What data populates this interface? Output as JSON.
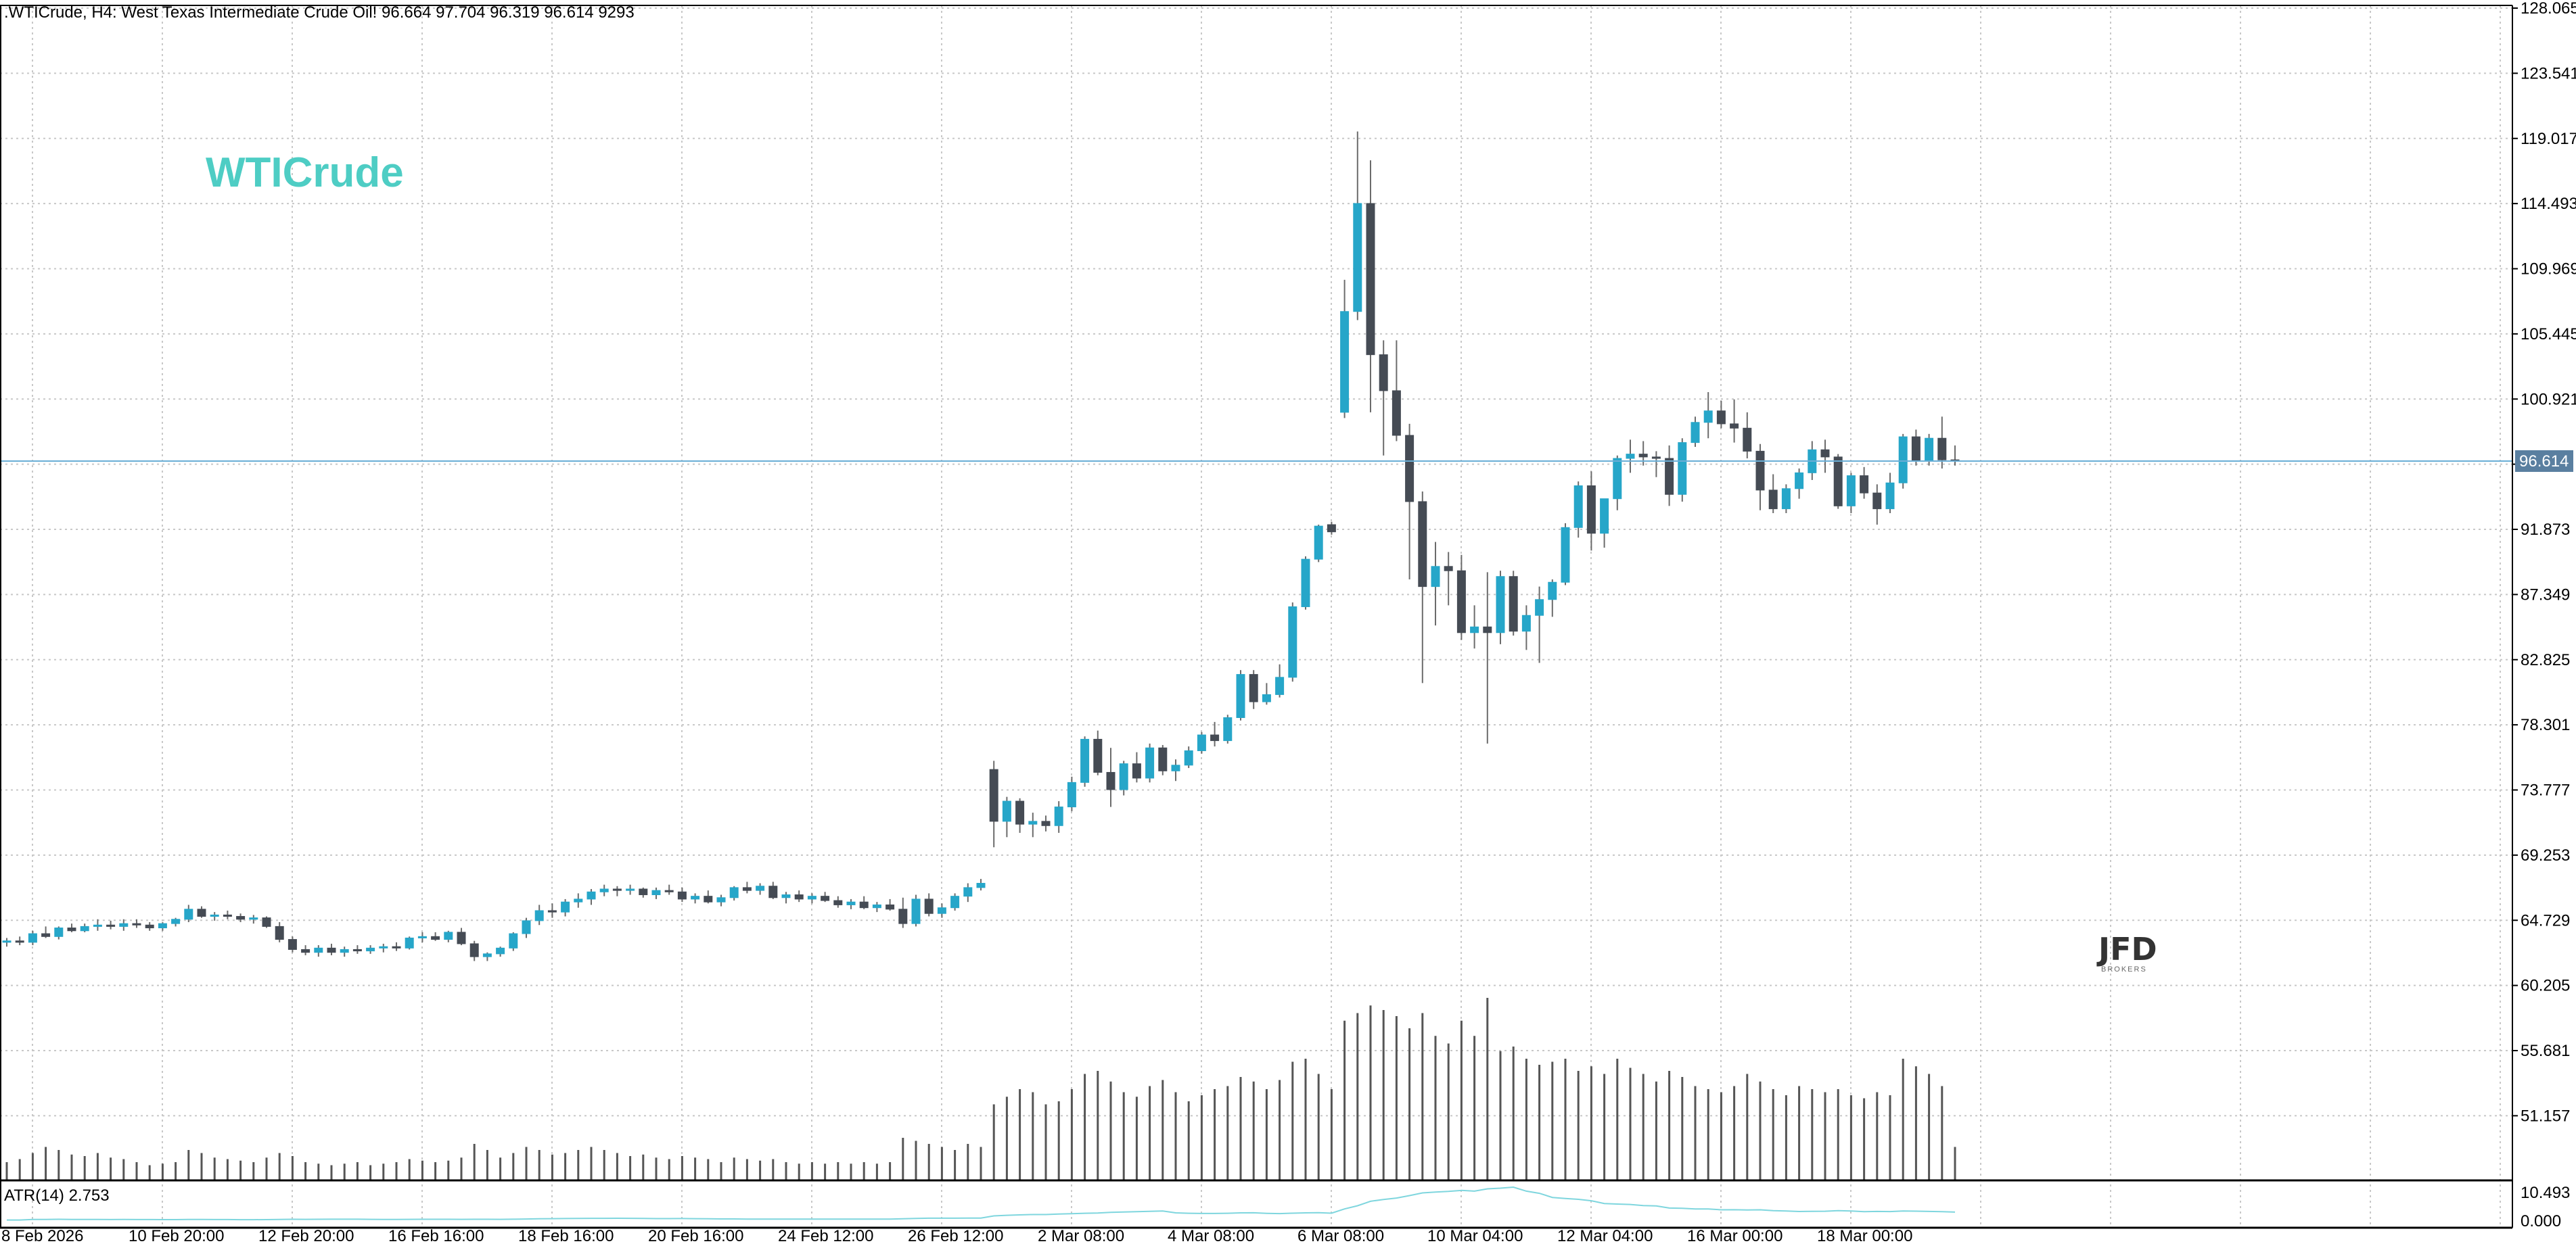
{
  "header": {
    "symbol": ".WTICrude",
    "timeframe": "H4",
    "description": "West Texas Intermediate Crude Oil!",
    "ohlc": "96.664 97.704 96.319 96.614",
    "tick_volume": "9293"
  },
  "watermark": {
    "symbol_label": "WTICrude",
    "logo_text": "JFD",
    "logo_subtext": "BROKERS"
  },
  "colors": {
    "bull": "#26a6c9",
    "bear": "#454b54",
    "grid": "#c8c8c8",
    "frame": "#000000",
    "price_line": "#6aaed6",
    "price_badge": "#5a7fa0",
    "symbol_label": "#4ecdc4",
    "volume": "#555555",
    "atr_line": "#7fd6de"
  },
  "indicator": {
    "label": "ATR(14) 2.753"
  },
  "chart_data": {
    "type": "candlestick",
    "title": ".WTICrude, H4: West Texas Intermediate Crude Oil!",
    "ylim": [
      55.681,
      128.065
    ],
    "y_ticks": [
      "128.065",
      "123.541",
      "119.017",
      "114.493",
      "109.969",
      "105.445",
      "100.921",
      "96.397",
      "91.873",
      "87.349",
      "82.825",
      "78.301",
      "73.777",
      "69.253",
      "64.729",
      "60.205",
      "55.681",
      "51.157"
    ],
    "current_price": "96.614",
    "x_tick_labels": [
      "8 Feb 2026",
      "10 Feb 20:00",
      "12 Feb 20:00",
      "16 Feb 16:00",
      "18 Feb 16:00",
      "20 Feb 16:00",
      "24 Feb 12:00",
      "26 Feb 12:00",
      "2 Mar 08:00",
      "4 Mar 08:00",
      "6 Mar 08:00",
      "10 Mar 04:00",
      "12 Mar 04:00",
      "16 Mar 00:00",
      "18 Mar 00:00"
    ],
    "candles": [
      [
        63.2,
        63.5,
        62.9,
        63.3,
        12
      ],
      [
        63.3,
        63.6,
        63.0,
        63.2,
        14
      ],
      [
        63.2,
        64.0,
        63.0,
        63.8,
        18
      ],
      [
        63.8,
        64.3,
        63.5,
        63.6,
        22
      ],
      [
        63.6,
        64.3,
        63.4,
        64.2,
        20
      ],
      [
        64.2,
        64.5,
        63.9,
        64.0,
        17
      ],
      [
        64.0,
        64.5,
        63.9,
        64.3,
        16
      ],
      [
        64.3,
        64.8,
        64.0,
        64.4,
        18
      ],
      [
        64.4,
        64.7,
        64.1,
        64.3,
        15
      ],
      [
        64.3,
        64.8,
        64.0,
        64.5,
        14
      ],
      [
        64.5,
        64.8,
        64.2,
        64.4,
        12
      ],
      [
        64.4,
        64.6,
        64.0,
        64.2,
        10
      ],
      [
        64.2,
        64.6,
        64.0,
        64.5,
        11
      ],
      [
        64.5,
        64.9,
        64.3,
        64.8,
        12
      ],
      [
        64.8,
        65.8,
        64.6,
        65.5,
        20
      ],
      [
        65.5,
        65.7,
        64.9,
        65.0,
        18
      ],
      [
        65.0,
        65.3,
        64.7,
        65.1,
        15
      ],
      [
        65.1,
        65.4,
        64.8,
        65.0,
        14
      ],
      [
        65.0,
        65.2,
        64.6,
        64.8,
        13
      ],
      [
        64.8,
        65.1,
        64.5,
        64.9,
        12
      ],
      [
        64.9,
        65.0,
        64.2,
        64.3,
        15
      ],
      [
        64.3,
        64.6,
        63.2,
        63.4,
        18
      ],
      [
        63.4,
        63.6,
        62.5,
        62.7,
        16
      ],
      [
        62.7,
        63.0,
        62.3,
        62.5,
        12
      ],
      [
        62.5,
        63.0,
        62.2,
        62.8,
        11
      ],
      [
        62.8,
        63.1,
        62.3,
        62.5,
        10
      ],
      [
        62.5,
        62.9,
        62.2,
        62.7,
        11
      ],
      [
        62.7,
        63.0,
        62.4,
        62.6,
        12
      ],
      [
        62.6,
        63.0,
        62.4,
        62.8,
        10
      ],
      [
        62.8,
        63.1,
        62.5,
        62.9,
        11
      ],
      [
        62.9,
        63.2,
        62.6,
        62.8,
        12
      ],
      [
        62.8,
        63.6,
        62.7,
        63.5,
        14
      ],
      [
        63.5,
        63.9,
        63.2,
        63.6,
        13
      ],
      [
        63.6,
        63.9,
        63.3,
        63.4,
        12
      ],
      [
        63.4,
        64.0,
        63.2,
        63.9,
        13
      ],
      [
        63.9,
        64.2,
        63.0,
        63.1,
        15
      ],
      [
        63.1,
        63.3,
        61.9,
        62.2,
        24
      ],
      [
        62.2,
        62.5,
        61.9,
        62.4,
        20
      ],
      [
        62.4,
        62.9,
        62.2,
        62.8,
        15
      ],
      [
        62.8,
        63.9,
        62.6,
        63.8,
        18
      ],
      [
        63.8,
        64.9,
        63.5,
        64.7,
        22
      ],
      [
        64.7,
        65.8,
        64.4,
        65.4,
        20
      ],
      [
        65.4,
        65.9,
        64.9,
        65.3,
        17
      ],
      [
        65.3,
        66.2,
        65.0,
        66.0,
        18
      ],
      [
        66.0,
        66.6,
        65.6,
        66.2,
        20
      ],
      [
        66.2,
        66.9,
        65.8,
        66.7,
        22
      ],
      [
        66.7,
        67.2,
        66.4,
        66.9,
        20
      ],
      [
        66.9,
        67.1,
        66.4,
        66.8,
        18
      ],
      [
        66.8,
        67.2,
        66.5,
        66.9,
        16
      ],
      [
        66.9,
        67.0,
        66.3,
        66.5,
        17
      ],
      [
        66.5,
        67.0,
        66.2,
        66.8,
        15
      ],
      [
        66.8,
        67.2,
        66.5,
        66.7,
        14
      ],
      [
        66.7,
        67.0,
        66.0,
        66.2,
        16
      ],
      [
        66.2,
        66.6,
        65.9,
        66.4,
        15
      ],
      [
        66.4,
        66.8,
        65.9,
        66.0,
        14
      ],
      [
        66.0,
        66.5,
        65.7,
        66.3,
        12
      ],
      [
        66.3,
        67.1,
        66.1,
        67.0,
        15
      ],
      [
        67.0,
        67.4,
        66.6,
        66.8,
        14
      ],
      [
        66.8,
        67.3,
        66.5,
        67.1,
        13
      ],
      [
        67.1,
        67.4,
        66.2,
        66.3,
        14
      ],
      [
        66.3,
        66.7,
        65.9,
        66.5,
        12
      ],
      [
        66.5,
        66.8,
        66.0,
        66.2,
        11
      ],
      [
        66.2,
        66.6,
        65.9,
        66.4,
        12
      ],
      [
        66.4,
        66.7,
        66.0,
        66.1,
        11
      ],
      [
        66.1,
        66.4,
        65.6,
        65.8,
        12
      ],
      [
        65.8,
        66.2,
        65.5,
        66.0,
        11
      ],
      [
        66.0,
        66.4,
        65.5,
        65.6,
        12
      ],
      [
        65.6,
        66.0,
        65.3,
        65.8,
        11
      ],
      [
        65.8,
        66.2,
        65.4,
        65.5,
        12
      ],
      [
        65.5,
        66.3,
        64.2,
        64.5,
        28
      ],
      [
        64.5,
        66.5,
        64.3,
        66.2,
        26
      ],
      [
        66.2,
        66.6,
        65.0,
        65.2,
        24
      ],
      [
        65.2,
        65.9,
        64.9,
        65.6,
        22
      ],
      [
        65.6,
        66.6,
        65.4,
        66.4,
        20
      ],
      [
        66.4,
        67.3,
        66.0,
        67.0,
        24
      ],
      [
        67.0,
        67.6,
        66.8,
        67.3,
        22
      ],
      [
        75.2,
        75.8,
        69.8,
        71.6,
        50
      ],
      [
        71.6,
        73.3,
        70.5,
        73.0,
        55
      ],
      [
        73.0,
        73.2,
        70.8,
        71.4,
        60
      ],
      [
        71.4,
        72.2,
        70.5,
        71.6,
        58
      ],
      [
        71.6,
        72.0,
        70.9,
        71.3,
        50
      ],
      [
        71.3,
        73.0,
        70.8,
        72.6,
        52
      ],
      [
        72.6,
        74.7,
        72.3,
        74.3,
        60
      ],
      [
        74.3,
        77.5,
        74.0,
        77.3,
        70
      ],
      [
        77.3,
        77.9,
        74.8,
        75.0,
        72
      ],
      [
        75.0,
        76.7,
        72.6,
        73.8,
        65
      ],
      [
        73.8,
        75.8,
        73.4,
        75.6,
        58
      ],
      [
        75.6,
        76.4,
        74.3,
        74.6,
        55
      ],
      [
        74.6,
        77.0,
        74.3,
        76.7,
        62
      ],
      [
        76.7,
        76.9,
        74.8,
        75.1,
        66
      ],
      [
        75.1,
        75.9,
        74.4,
        75.5,
        58
      ],
      [
        75.5,
        76.8,
        75.3,
        76.5,
        52
      ],
      [
        76.5,
        77.8,
        76.3,
        77.6,
        56
      ],
      [
        77.6,
        78.5,
        76.8,
        77.2,
        60
      ],
      [
        77.2,
        79.0,
        77.0,
        78.8,
        62
      ],
      [
        78.8,
        82.1,
        78.6,
        81.8,
        68
      ],
      [
        81.8,
        82.1,
        79.4,
        79.9,
        65
      ],
      [
        79.9,
        81.2,
        79.7,
        80.4,
        60
      ],
      [
        80.4,
        82.5,
        80.2,
        81.6,
        66
      ],
      [
        81.6,
        86.8,
        81.3,
        86.5,
        78
      ],
      [
        86.5,
        90.0,
        86.3,
        89.8,
        80
      ],
      [
        89.8,
        92.2,
        89.6,
        92.1,
        70
      ],
      [
        92.2,
        92.4,
        91.5,
        91.7,
        60
      ],
      [
        100.0,
        109.2,
        99.6,
        107.0,
        105
      ],
      [
        107.0,
        119.5,
        106.4,
        114.5,
        110
      ],
      [
        114.5,
        117.5,
        100.0,
        104.0,
        115
      ],
      [
        104.0,
        105.0,
        97.0,
        101.5,
        112
      ],
      [
        101.5,
        105.0,
        98.0,
        98.4,
        108
      ],
      [
        98.4,
        99.2,
        88.4,
        93.8,
        100
      ],
      [
        93.8,
        94.5,
        81.2,
        87.9,
        110
      ],
      [
        87.9,
        91.0,
        85.2,
        89.3,
        95
      ],
      [
        89.3,
        90.3,
        86.6,
        89.0,
        90
      ],
      [
        89.0,
        90.1,
        84.2,
        84.7,
        105
      ],
      [
        84.7,
        86.6,
        83.6,
        85.1,
        95
      ],
      [
        85.1,
        88.9,
        77.0,
        84.7,
        120
      ],
      [
        84.7,
        89.0,
        83.9,
        88.6,
        85
      ],
      [
        88.6,
        89.0,
        84.5,
        84.8,
        88
      ],
      [
        84.8,
        86.6,
        83.5,
        85.9,
        80
      ],
      [
        85.9,
        87.9,
        82.6,
        87.0,
        76
      ],
      [
        87.0,
        88.4,
        85.8,
        88.2,
        78
      ],
      [
        88.2,
        92.3,
        88.0,
        92.0,
        80
      ],
      [
        92.0,
        95.2,
        91.3,
        94.9,
        72
      ],
      [
        94.9,
        95.9,
        90.4,
        91.6,
        75
      ],
      [
        91.6,
        94.0,
        90.6,
        94.0,
        70
      ],
      [
        94.0,
        97.0,
        93.2,
        96.8,
        80
      ],
      [
        96.8,
        98.1,
        95.8,
        97.1,
        74
      ],
      [
        97.1,
        98.0,
        96.3,
        96.9,
        70
      ],
      [
        96.9,
        97.3,
        95.5,
        96.8,
        65
      ],
      [
        96.8,
        97.7,
        93.5,
        94.3,
        72
      ],
      [
        94.3,
        98.2,
        93.8,
        97.9,
        68
      ],
      [
        97.9,
        99.7,
        97.6,
        99.3,
        62
      ],
      [
        99.3,
        101.4,
        98.2,
        100.1,
        60
      ],
      [
        100.1,
        100.8,
        98.9,
        99.2,
        58
      ],
      [
        99.2,
        100.9,
        97.9,
        98.9,
        62
      ],
      [
        98.9,
        100.0,
        96.8,
        97.3,
        70
      ],
      [
        97.3,
        97.8,
        93.2,
        94.6,
        65
      ],
      [
        94.6,
        95.7,
        93.0,
        93.3,
        60
      ],
      [
        93.3,
        95.0,
        93.0,
        94.7,
        56
      ],
      [
        94.7,
        96.1,
        94.0,
        95.8,
        62
      ],
      [
        95.8,
        98.0,
        95.3,
        97.4,
        60
      ],
      [
        97.4,
        98.1,
        95.8,
        96.9,
        58
      ],
      [
        96.9,
        97.1,
        93.3,
        93.5,
        60
      ],
      [
        93.5,
        95.8,
        93.0,
        95.6,
        56
      ],
      [
        95.6,
        96.2,
        94.0,
        94.4,
        54
      ],
      [
        94.4,
        95.0,
        92.2,
        93.3,
        58
      ],
      [
        93.3,
        95.8,
        93.0,
        95.1,
        56
      ],
      [
        95.1,
        98.5,
        94.7,
        98.3,
        80
      ],
      [
        98.3,
        98.8,
        96.3,
        96.6,
        75
      ],
      [
        96.6,
        98.5,
        96.3,
        98.2,
        70
      ],
      [
        98.2,
        99.7,
        96.1,
        96.7,
        62
      ],
      [
        96.7,
        97.7,
        96.3,
        96.6,
        22
      ]
    ]
  }
}
